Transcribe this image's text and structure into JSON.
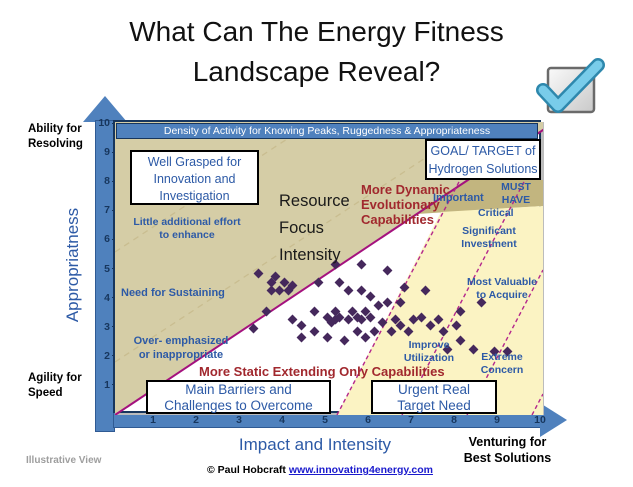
{
  "page_title": {
    "line1": "What Can The Energy Fitness",
    "line2": "Landscape Reveal?"
  },
  "banner_text": "Density of Activity for Knowing Peaks, Ruggedness & Appropriateness",
  "axis": {
    "y_axis_label": "Appropriatness",
    "x_axis_label": "Impact and Intensity",
    "top_left_label": {
      "line1": "Ability for",
      "line2": "Resolving"
    },
    "bottom_left_label": {
      "line1": "Agility for",
      "line2": "Speed"
    },
    "bottom_right_label": {
      "line1": "Venturing for",
      "line2": "Best Solutions"
    }
  },
  "callout_boxes": {
    "well_grasped": {
      "line1": "Well Grasped for",
      "line2": "Innovation and",
      "line3": "Investigation"
    },
    "goal_target": {
      "line1": "GOAL/ TARGET of",
      "line2": "Hydrogen Solutions"
    },
    "main_barriers": {
      "line1": "Main Barriers and",
      "line2": "Challenges to Overcome"
    },
    "urgent": {
      "line1": "Urgent Real",
      "line2": "Target Need"
    }
  },
  "zone_labels": {
    "resource_focus": {
      "line1": "Resource",
      "line2": "Focus",
      "line3": "Intensity"
    },
    "more_dynamic": {
      "line1": "More Dynamic",
      "line2": "Evolutionary",
      "line3": "Capabilities"
    },
    "more_static": "More Static Extending Only Capabilities",
    "little_additional": {
      "line1": "Little additional effort",
      "line2": "to enhance"
    },
    "need_sustaining": "Need for Sustaining",
    "over_emphasized": {
      "line1": "Over- emphasized",
      "line2": "or inappropriate"
    },
    "important": "Important",
    "must_have": {
      "line1": "MUST",
      "line2": "HAVE"
    },
    "critical": "Critical",
    "significant_investment": {
      "line1": "Significant",
      "line2": "Investment"
    },
    "most_valuable": {
      "line1": "Most Valuable",
      "line2": "to Acquire"
    },
    "improve_utilization": {
      "line1": "Improve",
      "line2": "Utilization"
    },
    "extreme_concern": {
      "line1": "Extreme",
      "line2": "Concern"
    }
  },
  "footer": {
    "watermark": "Illustrative View",
    "credit": "© Paul Hobcraft",
    "link": "www.innovating4energy.com"
  },
  "icons": {
    "checkmark": "checkmark-icon"
  },
  "colors": {
    "axis_blue": "#4f81bd",
    "tick_navy": "#17365d",
    "khaki_zone": "#d5cda6",
    "dark_tan_zone": "#c2b57f",
    "yellow_zone": "#fbf3c3",
    "magenta_line": "#a4117e",
    "magenta_dashed": "#b4268c",
    "tan_dashed": "#c9bd90",
    "scatter_purple": "#45285c",
    "blue_label": "#2d5aa6",
    "dark_red_label": "#a1282e",
    "link_blue": "#1a1acd"
  },
  "chart_data": {
    "type": "scatter",
    "title": "Density of Activity for Knowing Peaks, Ruggedness & Appropriateness",
    "xlabel": "Impact and Intensity",
    "ylabel": "Appropriatness",
    "xlim": [
      0,
      10
    ],
    "ylim": [
      0,
      10
    ],
    "x_ticks": [
      1,
      2,
      3,
      4,
      5,
      6,
      7,
      8,
      9,
      10
    ],
    "y_ticks": [
      1,
      2,
      3,
      4,
      5,
      6,
      7,
      8,
      9,
      10
    ],
    "grid": false,
    "marker": "diamond",
    "marker_color": "#45285c",
    "points": [
      [
        5.2,
        5.2
      ],
      [
        5.8,
        5.2
      ],
      [
        6.4,
        5.0
      ],
      [
        3.4,
        4.9
      ],
      [
        3.7,
        4.6
      ],
      [
        3.8,
        4.8
      ],
      [
        4.0,
        4.6
      ],
      [
        3.7,
        4.3
      ],
      [
        3.9,
        4.3
      ],
      [
        4.1,
        4.3
      ],
      [
        4.2,
        4.5
      ],
      [
        4.8,
        4.6
      ],
      [
        5.3,
        4.6
      ],
      [
        5.5,
        4.3
      ],
      [
        5.8,
        4.3
      ],
      [
        6.0,
        4.1
      ],
      [
        6.8,
        4.4
      ],
      [
        7.3,
        4.3
      ],
      [
        3.3,
        3.0
      ],
      [
        3.6,
        3.6
      ],
      [
        4.2,
        3.3
      ],
      [
        4.4,
        3.1
      ],
      [
        4.7,
        3.6
      ],
      [
        5.0,
        3.4
      ],
      [
        5.1,
        3.2
      ],
      [
        5.2,
        3.6
      ],
      [
        5.2,
        3.3
      ],
      [
        5.3,
        3.4
      ],
      [
        5.5,
        3.3
      ],
      [
        5.6,
        3.6
      ],
      [
        5.7,
        3.4
      ],
      [
        5.8,
        3.3
      ],
      [
        5.9,
        3.6
      ],
      [
        6.0,
        3.4
      ],
      [
        4.4,
        2.7
      ],
      [
        4.7,
        2.9
      ],
      [
        5.0,
        2.7
      ],
      [
        5.4,
        2.6
      ],
      [
        5.7,
        2.9
      ],
      [
        5.9,
        2.7
      ],
      [
        6.1,
        2.9
      ],
      [
        6.3,
        3.2
      ],
      [
        6.5,
        2.9
      ],
      [
        6.6,
        3.3
      ],
      [
        6.7,
        3.1
      ],
      [
        6.9,
        2.9
      ],
      [
        7.0,
        3.3
      ],
      [
        7.2,
        3.4
      ],
      [
        7.4,
        3.1
      ],
      [
        7.6,
        3.3
      ],
      [
        7.7,
        2.9
      ],
      [
        8.0,
        3.1
      ],
      [
        8.1,
        3.6
      ],
      [
        8.6,
        3.9
      ],
      [
        7.8,
        2.3
      ],
      [
        8.1,
        2.6
      ],
      [
        8.4,
        2.3
      ],
      [
        8.9,
        2.2
      ],
      [
        9.2,
        2.2
      ],
      [
        6.4,
        3.9
      ],
      [
        6.2,
        3.8
      ],
      [
        6.7,
        3.9
      ]
    ],
    "zones": [
      {
        "name": "khaki-upper-left",
        "color": "#d5cda6"
      },
      {
        "name": "dark-tan-top-right",
        "color": "#c2b57f"
      },
      {
        "name": "yellow-bottom-right",
        "color": "#fbf3c3"
      },
      {
        "name": "white-center",
        "color": "#ffffff"
      }
    ]
  }
}
